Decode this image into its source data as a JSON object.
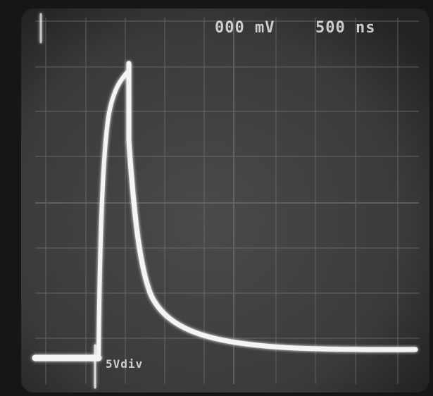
{
  "screen": {
    "readouts": {
      "top_left": "000 mV",
      "top_right": "500 ns",
      "bottom": "5Vdiv"
    }
  }
}
